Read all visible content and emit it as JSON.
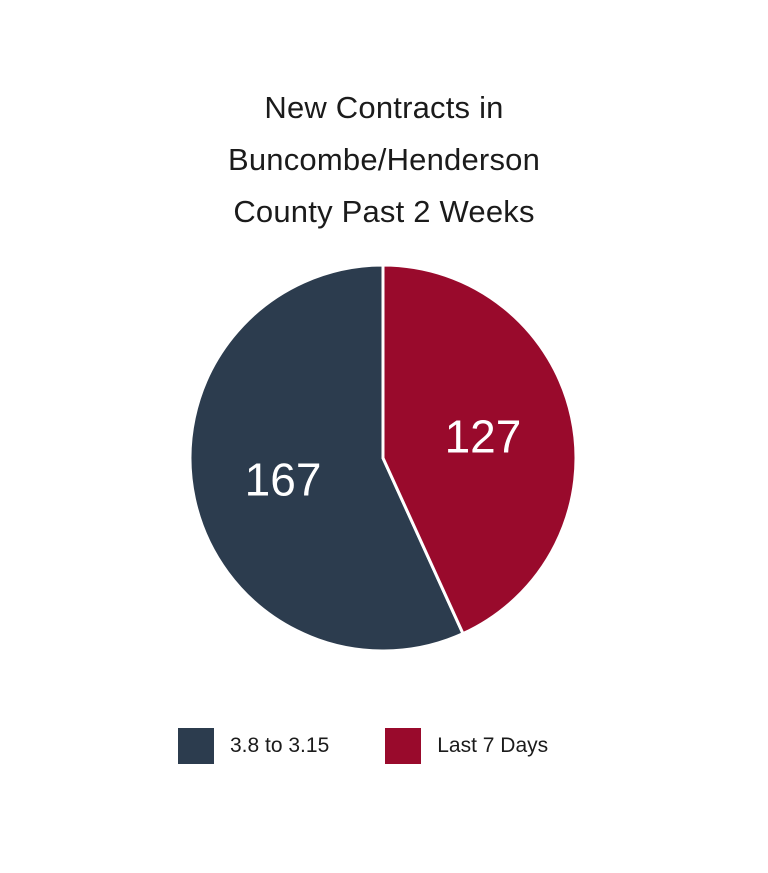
{
  "chart_data": {
    "type": "pie",
    "title_lines": [
      "New Contracts in",
      "Buncombe/Henderson",
      "County Past 2 Weeks"
    ],
    "series": [
      {
        "name": "3.8 to 3.15",
        "value": 167,
        "color": "#2c3c4e"
      },
      {
        "name": "Last 7 Days",
        "value": 127,
        "color": "#990a2c"
      }
    ],
    "data_labels": [
      "167",
      "127"
    ],
    "legend": {
      "placement": "bottom",
      "labels": [
        "3.8 to 3.15",
        "Last 7 Days"
      ]
    },
    "slice_border_color": "#ffffff",
    "label_color": "#ffffff"
  }
}
